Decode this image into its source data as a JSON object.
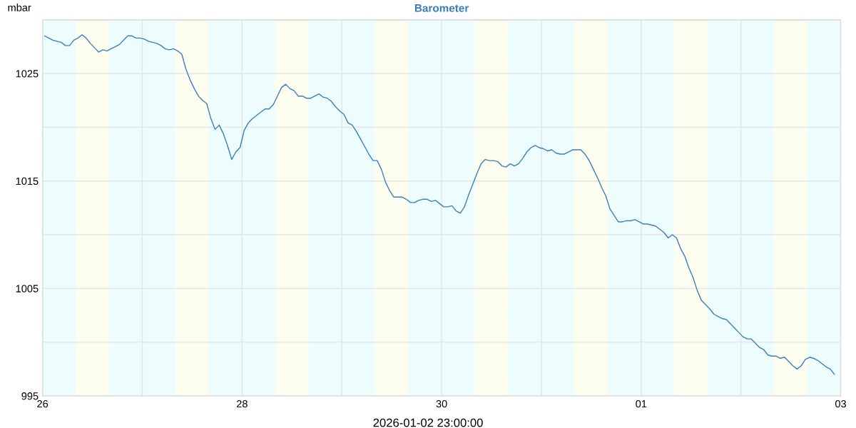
{
  "chart_data": {
    "type": "line",
    "title": "Barometer",
    "xlabel": "2026-01-02 23:00:00",
    "ylabel": "mbar",
    "x": [
      "2025-12-26T00:30",
      "2025-12-26T01:30",
      "2025-12-26T02:30",
      "2025-12-26T03:30",
      "2025-12-26T04:30",
      "2025-12-26T05:30",
      "2025-12-26T06:30",
      "2025-12-26T07:30",
      "2025-12-26T08:30",
      "2025-12-26T09:30",
      "2025-12-26T10:30",
      "2025-12-26T11:30",
      "2025-12-26T12:30",
      "2025-12-26T13:30",
      "2025-12-26T14:30",
      "2025-12-26T15:30",
      "2025-12-26T16:30",
      "2025-12-26T17:30",
      "2025-12-26T18:30",
      "2025-12-26T19:30",
      "2025-12-26T20:30",
      "2025-12-26T21:30",
      "2025-12-26T22:30",
      "2025-12-26T23:30",
      "2025-12-27T00:30",
      "2025-12-27T01:30",
      "2025-12-27T02:30",
      "2025-12-27T03:30",
      "2025-12-27T04:30",
      "2025-12-27T05:30",
      "2025-12-27T06:30",
      "2025-12-27T07:30",
      "2025-12-27T08:30",
      "2025-12-27T09:30",
      "2025-12-27T10:30",
      "2025-12-27T11:30",
      "2025-12-27T12:30",
      "2025-12-27T13:30",
      "2025-12-27T14:30",
      "2025-12-27T15:30",
      "2025-12-27T16:30",
      "2025-12-27T17:30",
      "2025-12-27T18:30",
      "2025-12-27T19:30",
      "2025-12-27T20:30",
      "2025-12-27T21:30",
      "2025-12-27T22:30",
      "2025-12-27T23:30",
      "2025-12-28T00:30",
      "2025-12-28T01:30",
      "2025-12-28T02:30",
      "2025-12-28T03:30",
      "2025-12-28T04:30",
      "2025-12-28T05:30",
      "2025-12-28T06:30",
      "2025-12-28T07:30",
      "2025-12-28T08:30",
      "2025-12-28T09:30",
      "2025-12-28T10:30",
      "2025-12-28T11:30",
      "2025-12-28T12:30",
      "2025-12-28T13:30",
      "2025-12-28T14:30",
      "2025-12-28T15:30",
      "2025-12-28T16:30",
      "2025-12-28T17:30",
      "2025-12-28T18:30",
      "2025-12-28T19:30",
      "2025-12-28T20:30",
      "2025-12-28T21:30",
      "2025-12-28T22:30",
      "2025-12-28T23:30",
      "2025-12-29T00:30",
      "2025-12-29T01:30",
      "2025-12-29T02:30",
      "2025-12-29T03:30",
      "2025-12-29T04:30",
      "2025-12-29T05:30",
      "2025-12-29T06:30",
      "2025-12-29T07:30",
      "2025-12-29T08:30",
      "2025-12-29T09:30",
      "2025-12-29T10:30",
      "2025-12-29T11:30",
      "2025-12-29T12:30",
      "2025-12-29T13:30",
      "2025-12-29T14:30",
      "2025-12-29T15:30",
      "2025-12-29T16:30",
      "2025-12-29T17:30",
      "2025-12-29T18:30",
      "2025-12-29T19:30",
      "2025-12-29T20:30",
      "2025-12-29T21:30",
      "2025-12-29T22:30",
      "2025-12-29T23:30",
      "2025-12-30T00:30",
      "2025-12-30T01:30",
      "2025-12-30T02:30",
      "2025-12-30T03:30",
      "2025-12-30T04:30",
      "2025-12-30T05:30",
      "2025-12-30T06:30",
      "2025-12-30T07:30",
      "2025-12-30T08:30",
      "2025-12-30T09:30",
      "2025-12-30T10:30",
      "2025-12-30T11:30",
      "2025-12-30T12:30",
      "2025-12-30T13:30",
      "2025-12-30T14:30",
      "2025-12-30T15:30",
      "2025-12-30T16:30",
      "2025-12-30T17:30",
      "2025-12-30T18:30",
      "2025-12-30T19:30",
      "2025-12-30T20:30",
      "2025-12-30T21:30",
      "2025-12-30T22:30",
      "2025-12-30T23:30",
      "2025-12-31T00:30",
      "2025-12-31T01:30",
      "2025-12-31T02:30",
      "2025-12-31T03:30",
      "2025-12-31T04:30",
      "2025-12-31T05:30",
      "2025-12-31T06:30",
      "2025-12-31T07:30",
      "2025-12-31T08:30",
      "2025-12-31T09:30",
      "2025-12-31T10:30",
      "2025-12-31T11:30",
      "2025-12-31T12:30",
      "2025-12-31T13:30",
      "2025-12-31T14:30",
      "2025-12-31T15:30",
      "2025-12-31T16:30",
      "2025-12-31T17:30",
      "2025-12-31T18:30",
      "2025-12-31T19:30",
      "2025-12-31T20:30",
      "2025-12-31T21:30",
      "2025-12-31T22:30",
      "2025-12-31T23:30",
      "2026-01-01T00:30",
      "2026-01-01T01:30",
      "2026-01-01T02:30",
      "2026-01-01T03:30",
      "2026-01-01T04:30",
      "2026-01-01T05:30",
      "2026-01-01T06:30",
      "2026-01-01T07:30",
      "2026-01-01T08:30",
      "2026-01-01T09:30",
      "2026-01-01T10:30",
      "2026-01-01T11:30",
      "2026-01-01T12:30",
      "2026-01-01T13:30",
      "2026-01-01T14:30",
      "2026-01-01T15:30",
      "2026-01-01T16:30",
      "2026-01-01T17:30",
      "2026-01-01T18:30",
      "2026-01-01T19:30",
      "2026-01-01T20:30",
      "2026-01-01T21:30",
      "2026-01-01T22:30",
      "2026-01-01T23:30",
      "2026-01-02T00:30",
      "2026-01-02T01:30",
      "2026-01-02T02:30",
      "2026-01-02T03:30",
      "2026-01-02T04:30",
      "2026-01-02T05:30",
      "2026-01-02T06:30",
      "2026-01-02T07:30",
      "2026-01-02T08:30",
      "2026-01-02T09:30",
      "2026-01-02T10:30",
      "2026-01-02T11:30",
      "2026-01-02T12:30",
      "2026-01-02T13:30",
      "2026-01-02T14:30",
      "2026-01-02T15:30",
      "2026-01-02T16:30",
      "2026-01-02T17:30",
      "2026-01-02T18:30",
      "2026-01-02T19:30",
      "2026-01-02T20:30",
      "2026-01-02T21:30",
      "2026-01-02T22:30"
    ],
    "series": [
      {
        "color": "#3f7cbf",
        "values": [
          1028.5,
          1028.3,
          1028.1,
          1028.0,
          1027.9,
          1027.6,
          1027.6,
          1028.1,
          1028.3,
          1028.6,
          1028.3,
          1027.8,
          1027.4,
          1027.0,
          1027.2,
          1027.1,
          1027.3,
          1027.5,
          1027.7,
          1028.1,
          1028.5,
          1028.5,
          1028.3,
          1028.3,
          1028.2,
          1028.0,
          1027.9,
          1027.8,
          1027.6,
          1027.3,
          1027.2,
          1027.3,
          1027.1,
          1026.8,
          1025.4,
          1024.4,
          1023.6,
          1022.9,
          1022.5,
          1022.2,
          1020.8,
          1019.8,
          1020.2,
          1019.4,
          1018.3,
          1017.0,
          1017.7,
          1018.1,
          1019.7,
          1020.4,
          1020.8,
          1021.1,
          1021.4,
          1021.7,
          1021.7,
          1022.1,
          1022.9,
          1023.7,
          1024.0,
          1023.6,
          1023.4,
          1022.9,
          1022.9,
          1022.7,
          1022.7,
          1022.9,
          1023.1,
          1022.8,
          1022.7,
          1022.4,
          1021.9,
          1021.5,
          1021.2,
          1020.4,
          1020.2,
          1019.6,
          1018.9,
          1018.2,
          1017.5,
          1016.9,
          1016.9,
          1016.1,
          1014.9,
          1014.1,
          1013.5,
          1013.5,
          1013.5,
          1013.3,
          1013.0,
          1013.0,
          1013.2,
          1013.3,
          1013.3,
          1013.1,
          1013.2,
          1012.9,
          1012.6,
          1012.6,
          1012.7,
          1012.2,
          1012.0,
          1012.6,
          1013.7,
          1014.7,
          1015.7,
          1016.6,
          1017.0,
          1016.9,
          1016.9,
          1016.8,
          1016.4,
          1016.3,
          1016.6,
          1016.4,
          1016.6,
          1017.1,
          1017.7,
          1018.1,
          1018.3,
          1018.1,
          1018.0,
          1017.8,
          1017.9,
          1017.6,
          1017.5,
          1017.5,
          1017.7,
          1017.9,
          1017.9,
          1017.9,
          1017.5,
          1016.9,
          1016.1,
          1015.3,
          1014.4,
          1013.6,
          1012.4,
          1011.8,
          1011.2,
          1011.2,
          1011.3,
          1011.3,
          1011.4,
          1011.2,
          1011.0,
          1011.0,
          1010.9,
          1010.8,
          1010.5,
          1010.2,
          1009.7,
          1010.0,
          1009.7,
          1008.7,
          1008.0,
          1006.9,
          1006.0,
          1004.8,
          1003.9,
          1003.5,
          1003.1,
          1002.6,
          1002.4,
          1002.2,
          1002.1,
          1001.7,
          1001.3,
          1000.9,
          1000.5,
          1000.3,
          1000.3,
          999.9,
          999.5,
          999.3,
          998.8,
          998.7,
          998.7,
          998.5,
          998.6,
          998.2,
          997.8,
          997.5,
          997.8,
          998.4,
          998.6,
          998.5,
          998.3,
          998.0,
          997.7,
          997.5,
          997.0
        ]
      }
    ],
    "xlim": [
      "2025-12-26",
      "2026-01-03"
    ],
    "ylim": [
      995,
      1030
    ],
    "xticks": [
      {
        "value": "2025-12-26",
        "label": "26"
      },
      {
        "value": "2025-12-27",
        "label": null
      },
      {
        "value": "2025-12-28",
        "label": "28"
      },
      {
        "value": "2025-12-29",
        "label": null
      },
      {
        "value": "2025-12-30",
        "label": "30"
      },
      {
        "value": "2025-12-31",
        "label": null
      },
      {
        "value": "2026-01-01",
        "label": "01"
      },
      {
        "value": "2026-01-02",
        "label": null
      },
      {
        "value": "2026-01-03",
        "label": "03"
      }
    ],
    "yticks": [
      995,
      {
        "value": 1000,
        "label": null
      },
      1005,
      {
        "value": 1010,
        "label": null
      },
      1015,
      {
        "value": 1020,
        "label": null
      },
      1025,
      {
        "value": 1030,
        "label": null
      }
    ],
    "grid": true,
    "bands": [
      {
        "axis": "x",
        "from": "2025-12-26T00:00",
        "to": "2025-12-26T08:00",
        "color": "#edfcfd"
      },
      {
        "axis": "x",
        "from": "2025-12-26T08:00",
        "to": "2025-12-26T16:00",
        "color": "#fdfdef"
      },
      {
        "axis": "x",
        "from": "2025-12-26T16:00",
        "to": "2025-12-27T08:00",
        "color": "#edfcfd"
      },
      {
        "axis": "x",
        "from": "2025-12-27T08:00",
        "to": "2025-12-27T16:00",
        "color": "#fdfdef"
      },
      {
        "axis": "x",
        "from": "2025-12-27T16:00",
        "to": "2025-12-28T08:00",
        "color": "#edfcfd"
      },
      {
        "axis": "x",
        "from": "2025-12-28T08:00",
        "to": "2025-12-28T16:00",
        "color": "#fdfdef"
      },
      {
        "axis": "x",
        "from": "2025-12-28T16:00",
        "to": "2025-12-29T08:00",
        "color": "#edfcfd"
      },
      {
        "axis": "x",
        "from": "2025-12-29T08:00",
        "to": "2025-12-29T16:00",
        "color": "#fdfdef"
      },
      {
        "axis": "x",
        "from": "2025-12-29T16:00",
        "to": "2025-12-30T08:00",
        "color": "#edfcfd"
      },
      {
        "axis": "x",
        "from": "2025-12-30T08:00",
        "to": "2025-12-30T16:00",
        "color": "#fdfdef"
      },
      {
        "axis": "x",
        "from": "2025-12-30T16:00",
        "to": "2025-12-31T08:00",
        "color": "#edfcfd"
      },
      {
        "axis": "x",
        "from": "2025-12-31T08:00",
        "to": "2025-12-31T16:00",
        "color": "#fdfdef"
      },
      {
        "axis": "x",
        "from": "2025-12-31T16:00",
        "to": "2026-01-01T08:00",
        "color": "#edfcfd"
      },
      {
        "axis": "x",
        "from": "2026-01-01T08:00",
        "to": "2026-01-01T16:00",
        "color": "#fdfdef"
      },
      {
        "axis": "x",
        "from": "2026-01-01T16:00",
        "to": "2026-01-02T08:00",
        "color": "#edfcfd"
      },
      {
        "axis": "x",
        "from": "2026-01-02T08:00",
        "to": "2026-01-02T16:00",
        "color": "#fdfdef"
      },
      {
        "axis": "x",
        "from": "2026-01-02T16:00",
        "to": "2026-01-03T00:00",
        "color": "#edfcfd"
      }
    ]
  }
}
